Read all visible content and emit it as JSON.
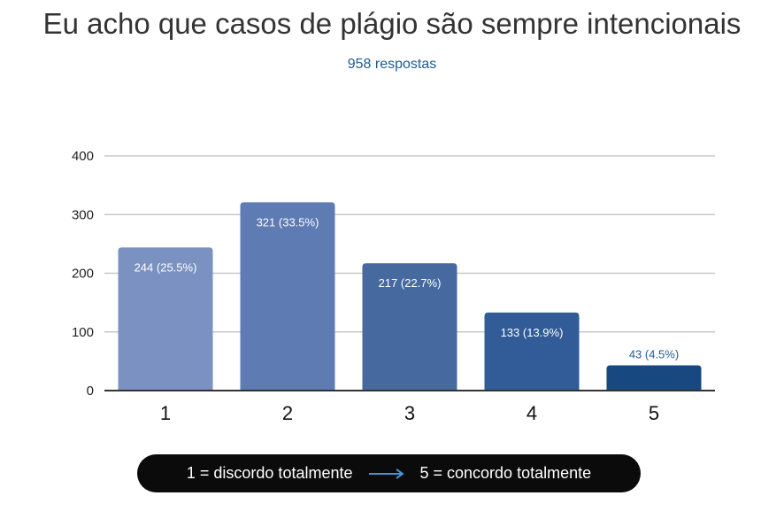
{
  "chart_data": {
    "type": "bar",
    "title": "Eu acho que casos de plágio são sempre intencionais",
    "subtitle": "958 respostas",
    "categories": [
      "1",
      "2",
      "3",
      "4",
      "5"
    ],
    "values": [
      244,
      321,
      217,
      133,
      43
    ],
    "data_labels": [
      "244 (25.5%)",
      "321 (33.5%)",
      "217 (22.7%)",
      "133 (13.9%)",
      "43 (4.5%)"
    ],
    "ylim": [
      0,
      400
    ],
    "yticks": [
      0,
      100,
      200,
      300,
      400
    ],
    "grid": true,
    "colors": [
      "#7a91c2",
      "#5e7bb4",
      "#46699f",
      "#315c97",
      "#17487f"
    ],
    "legend_note": {
      "left": "1 = discordo totalmente",
      "right": "5 = concordo totalmente",
      "arrow_color": "#4a8fd6"
    }
  }
}
